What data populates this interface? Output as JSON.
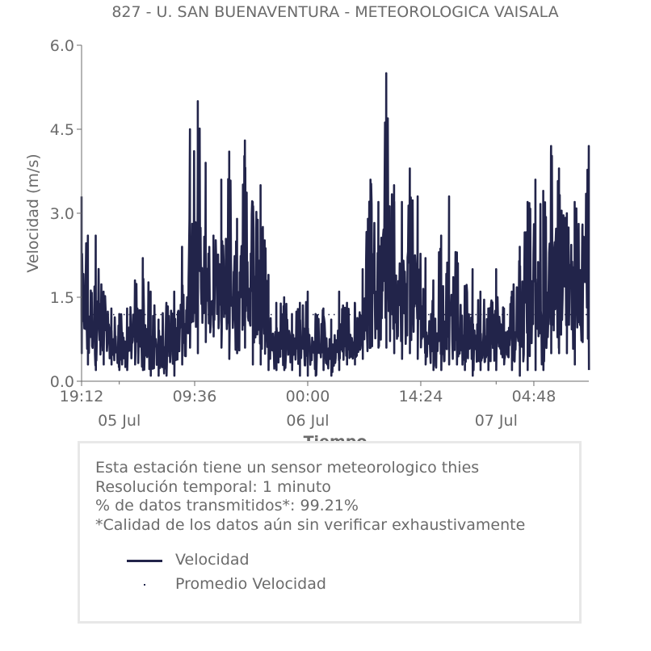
{
  "chart_data": {
    "type": "line",
    "title": "827 - U. SAN BUENAVENTURA - METEOROLOGICA VAISALA",
    "xlabel": "Tiempo",
    "ylabel": "Velocidad (m/s)",
    "ylim": [
      0,
      6
    ],
    "y_ticks": [
      "0.0",
      "1.5",
      "3.0",
      "4.5",
      "6.0"
    ],
    "x_start": "2020-07-04T19:12",
    "x_end": "2020-07-07T11:48",
    "x_ticks": [
      "19:12",
      "09:36",
      "00:00",
      "14:24",
      "04:48"
    ],
    "x_tick_times": [
      "2020-07-04T19:12",
      "2020-07-05T09:36",
      "2020-07-06T00:00",
      "2020-07-06T14:24",
      "2020-07-07T04:48"
    ],
    "date_labels": [
      "05 Jul",
      "06 Jul",
      "07 Jul"
    ],
    "date_label_times": [
      "2020-07-05T00:00",
      "2020-07-06T00:00",
      "2020-07-07T00:00"
    ],
    "series": [
      {
        "name": "Velocidad",
        "color": "#22244a",
        "style": "solid",
        "x": [
          "2020-07-04T19:12",
          "2020-07-04T20:00",
          "2020-07-04T21:00",
          "2020-07-04T22:00",
          "2020-07-04T23:00",
          "2020-07-05T00:00",
          "2020-07-05T01:00",
          "2020-07-05T02:00",
          "2020-07-05T03:00",
          "2020-07-05T04:00",
          "2020-07-05T05:00",
          "2020-07-05T06:00",
          "2020-07-05T07:00",
          "2020-07-05T08:00",
          "2020-07-05T09:00",
          "2020-07-05T10:00",
          "2020-07-05T11:00",
          "2020-07-05T12:00",
          "2020-07-05T13:00",
          "2020-07-05T14:00",
          "2020-07-05T15:00",
          "2020-07-05T16:00",
          "2020-07-05T17:00",
          "2020-07-05T18:00",
          "2020-07-05T19:00",
          "2020-07-05T20:00",
          "2020-07-05T21:00",
          "2020-07-05T22:00",
          "2020-07-05T23:00",
          "2020-07-06T00:00",
          "2020-07-06T01:00",
          "2020-07-06T02:00",
          "2020-07-06T03:00",
          "2020-07-06T04:00",
          "2020-07-06T05:00",
          "2020-07-06T06:00",
          "2020-07-06T07:00",
          "2020-07-06T08:00",
          "2020-07-06T09:00",
          "2020-07-06T10:00",
          "2020-07-06T11:00",
          "2020-07-06T12:00",
          "2020-07-06T13:00",
          "2020-07-06T14:00",
          "2020-07-06T15:00",
          "2020-07-06T16:00",
          "2020-07-06T17:00",
          "2020-07-06T18:00",
          "2020-07-06T19:00",
          "2020-07-06T20:00",
          "2020-07-06T21:00",
          "2020-07-06T22:00",
          "2020-07-06T23:00",
          "2020-07-07T00:00",
          "2020-07-07T01:00",
          "2020-07-07T02:00",
          "2020-07-07T03:00",
          "2020-07-07T04:00",
          "2020-07-07T05:00",
          "2020-07-07T06:00",
          "2020-07-07T07:00",
          "2020-07-07T08:00",
          "2020-07-07T09:00",
          "2020-07-07T10:00",
          "2020-07-07T11:00",
          "2020-07-07T11:48"
        ],
        "max": [
          3.3,
          2.6,
          2.6,
          1.6,
          1.3,
          1.2,
          1.3,
          1.8,
          2.2,
          1.6,
          1.1,
          1.4,
          1.6,
          2.4,
          4.5,
          5.0,
          3.9,
          2.6,
          3.6,
          4.1,
          2.9,
          4.3,
          3.2,
          3.5,
          1.9,
          1.4,
          1.5,
          1.2,
          1.4,
          1.6,
          1.2,
          1.3,
          1.1,
          1.6,
          1.4,
          1.4,
          2.0,
          3.6,
          3.2,
          5.5,
          3.5,
          3.2,
          3.8,
          3.3,
          2.2,
          1.8,
          2.6,
          3.3,
          2.3,
          1.7,
          2.0,
          1.6,
          1.3,
          2.0,
          1.3,
          1.6,
          2.4,
          3.2,
          3.6,
          3.4,
          4.2,
          3.8,
          3.0,
          3.2,
          2.8,
          4.2
        ],
        "min": [
          0.5,
          0.3,
          0.2,
          0.3,
          0.3,
          0.2,
          0.2,
          0.3,
          0.2,
          0.1,
          0.1,
          0.1,
          0.1,
          0.3,
          0.6,
          0.5,
          0.7,
          0.8,
          0.6,
          0.4,
          0.5,
          0.6,
          0.3,
          0.3,
          0.2,
          0.2,
          0.2,
          0.2,
          0.1,
          0.1,
          0.1,
          0.2,
          0.1,
          0.2,
          0.3,
          0.3,
          0.4,
          0.6,
          0.6,
          0.6,
          0.5,
          0.4,
          0.5,
          0.4,
          0.3,
          0.2,
          0.2,
          0.3,
          0.3,
          0.2,
          0.1,
          0.2,
          0.2,
          0.2,
          0.3,
          0.2,
          0.1,
          0.2,
          0.2,
          0.2,
          0.5,
          0.5,
          0.5,
          0.3,
          0.7,
          0.2
        ],
        "typical": [
          1.2,
          1.0,
          0.8,
          0.6,
          0.6,
          0.6,
          0.6,
          0.8,
          0.8,
          0.6,
          0.5,
          0.6,
          0.6,
          0.9,
          1.5,
          1.8,
          1.6,
          1.4,
          1.5,
          1.6,
          1.4,
          1.6,
          1.4,
          1.3,
          0.9,
          0.7,
          0.7,
          0.6,
          0.6,
          0.6,
          0.5,
          0.6,
          0.5,
          0.6,
          0.7,
          0.7,
          0.9,
          1.4,
          1.4,
          1.8,
          1.5,
          1.4,
          1.5,
          1.4,
          1.0,
          0.9,
          1.0,
          1.2,
          1.0,
          0.8,
          0.8,
          0.7,
          0.6,
          0.8,
          0.7,
          0.7,
          0.8,
          1.1,
          1.3,
          1.3,
          1.6,
          1.6,
          1.4,
          1.4,
          1.4,
          1.6
        ]
      },
      {
        "name": "Promedio Velocidad",
        "color": "#22244a",
        "style": "dotted",
        "value": 1.19
      }
    ],
    "grid": false,
    "legend": "bottom"
  },
  "notes": {
    "line1": "Esta estación tiene un sensor meteorologico thies",
    "line2": "Resolución temporal: 1 minuto",
    "line3": "% de datos transmitidos*: 99.21%",
    "line4": "*Calidad de los datos aún sin verificar exhaustivamente"
  },
  "legend": {
    "series_label": "Velocidad",
    "mean_label": "Promedio Velocidad"
  }
}
